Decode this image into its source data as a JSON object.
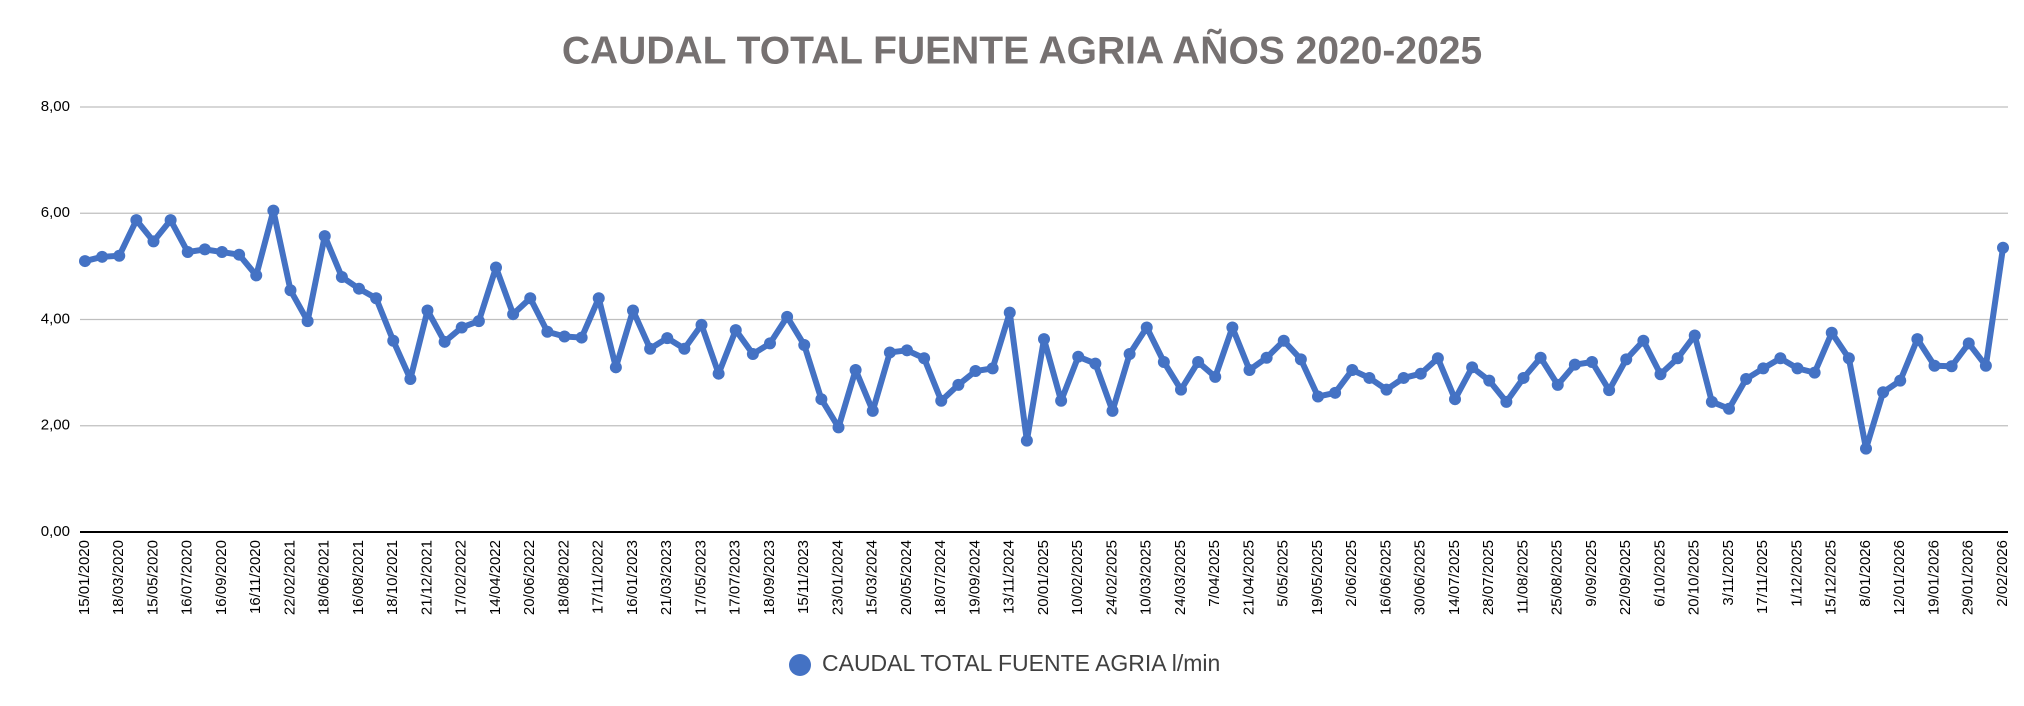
{
  "chart_data": {
    "type": "line",
    "title": "CAUDAL TOTAL FUENTE AGRIA AÑOS 2020-2025",
    "categories": [
      "15/01/2020",
      null,
      "18/03/2020",
      null,
      "15/05/2020",
      null,
      "16/07/2020",
      null,
      "16/09/2020",
      null,
      "16/11/2020",
      null,
      "22/02/2021",
      null,
      "18/06/2021",
      null,
      "16/08/2021",
      null,
      "18/10/2021",
      null,
      "21/12/2021",
      null,
      "17/02/2022",
      null,
      "14/04/2022",
      null,
      "20/06/2022",
      null,
      "18/08/2022",
      null,
      "17/11/2022",
      null,
      "16/01/2023",
      null,
      "21/03/2023",
      null,
      "17/05/2023",
      null,
      "17/07/2023",
      null,
      "18/09/2023",
      null,
      "15/11/2023",
      null,
      "23/01/2024",
      null,
      "15/03/2024",
      null,
      "20/05/2024",
      null,
      "18/07/2024",
      null,
      "19/09/2024",
      null,
      "13/11/2024",
      null,
      "20/01/2025",
      null,
      "10/02/2025",
      null,
      "24/02/2025",
      null,
      "10/03/2025",
      null,
      "24/03/2025",
      null,
      "7/04/2025",
      null,
      "21/04/2025",
      null,
      "5/05/2025",
      null,
      "19/05/2025",
      null,
      "2/06/2025",
      null,
      "16/06/2025",
      null,
      "30/06/2025",
      null,
      "14/07/2025",
      null,
      "28/07/2025",
      null,
      "11/08/2025",
      null,
      "25/08/2025",
      null,
      "9/09/2025",
      null,
      "22/09/2025",
      null,
      "6/10/2025",
      null,
      "20/10/2025",
      null,
      "3/11/2025",
      null,
      "17/11/2025",
      null,
      "1/12/2025",
      null,
      "15/12/2025",
      null,
      "8/01/2026",
      null,
      "12/01/2026",
      null,
      "19/01/2026",
      null,
      "29/01/2026",
      null,
      "2/02/2026"
    ],
    "series": [
      {
        "name": "CAUDAL TOTAL FUENTE AGRIA l/min",
        "color": "#4472c4",
        "values": [
          5.1,
          5.18,
          5.2,
          5.87,
          5.47,
          5.87,
          5.27,
          5.32,
          5.27,
          5.22,
          4.83,
          6.05,
          4.55,
          3.97,
          5.57,
          4.8,
          4.58,
          4.4,
          3.6,
          2.88,
          4.17,
          3.58,
          3.85,
          3.97,
          4.98,
          4.1,
          4.4,
          3.77,
          3.68,
          3.66,
          4.4,
          3.1,
          4.17,
          3.45,
          3.65,
          3.45,
          3.9,
          2.98,
          3.8,
          3.35,
          3.55,
          4.05,
          3.52,
          2.5,
          1.97,
          3.05,
          2.28,
          3.38,
          3.42,
          3.27,
          2.47,
          2.77,
          3.03,
          3.08,
          4.13,
          1.72,
          3.63,
          2.47,
          3.3,
          3.17,
          2.28,
          3.35,
          3.85,
          3.2,
          2.68,
          3.2,
          2.92,
          3.85,
          3.05,
          3.28,
          3.6,
          3.25,
          2.55,
          2.62,
          3.05,
          2.9,
          2.68,
          2.9,
          2.98,
          3.27,
          2.5,
          3.1,
          2.85,
          2.45,
          2.9,
          3.28,
          2.77,
          3.15,
          3.2,
          2.67,
          3.25,
          3.6,
          2.97,
          3.27,
          3.7,
          2.45,
          2.32,
          2.88,
          3.08,
          3.27,
          3.08,
          3.0,
          3.75,
          3.27,
          1.57,
          2.63,
          2.85,
          3.63,
          3.13,
          3.12,
          3.55,
          3.13,
          5.35
        ]
      }
    ],
    "ylim": [
      0,
      8
    ],
    "yticks": [
      {
        "value": 0,
        "label": "0,00"
      },
      {
        "value": 2,
        "label": "2,00"
      },
      {
        "value": 4,
        "label": "4,00"
      },
      {
        "value": 6,
        "label": "6,00"
      },
      {
        "value": 8,
        "label": "8,00"
      }
    ],
    "grid": true,
    "legend": "bottom"
  }
}
